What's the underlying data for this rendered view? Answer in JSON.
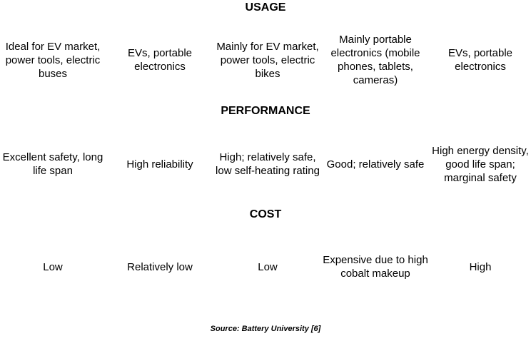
{
  "sections": {
    "usage": {
      "title": "USAGE",
      "cells": [
        "Ideal for EV market, power tools, electric buses",
        "EVs, portable electronics",
        "Mainly for EV market, power tools, electric bikes",
        "Mainly portable electronics (mobile phones, tablets, cameras)",
        "EVs, portable electronics"
      ]
    },
    "performance": {
      "title": "PERFORMANCE",
      "cells": [
        "Excellent safety, long life span",
        "High reliability",
        "High; relatively safe, low self-heating rating",
        "Good; relatively safe",
        "High energy density, good life span; marginal safety"
      ]
    },
    "cost": {
      "title": "COST",
      "cells": [
        "Low",
        "Relatively low",
        "Low",
        "Expensive due to high cobalt makeup",
        "High"
      ]
    }
  },
  "source": "Source: Battery University [6]"
}
